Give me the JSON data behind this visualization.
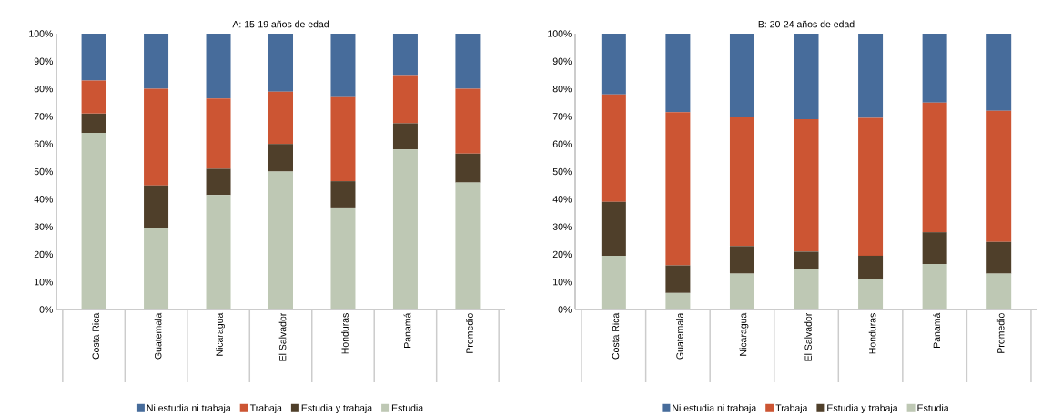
{
  "chart_data": [
    {
      "type": "bar",
      "stacked": true,
      "title": "A: 15-19 años de edad",
      "legend": "bottom",
      "categories": [
        "Costa Rica",
        "Guatemala",
        "Nicaragua",
        "El Salvador",
        "Honduras",
        "Panamá",
        "Promedio"
      ],
      "ylim": [
        0,
        100
      ],
      "yticks": [
        {
          "value": 0,
          "label": "0%"
        },
        {
          "value": 10,
          "label": "10%"
        },
        {
          "value": 20,
          "label": "20%"
        },
        {
          "value": 30,
          "label": "30%"
        },
        {
          "value": 40,
          "label": "40%"
        },
        {
          "value": 50,
          "label": "50%"
        },
        {
          "value": 60,
          "label": "60%"
        },
        {
          "value": 70,
          "label": "70%"
        },
        {
          "value": 80,
          "label": "80%"
        },
        {
          "value": 90,
          "label": "90%"
        },
        {
          "value": 100,
          "label": "100%"
        }
      ],
      "series": [
        {
          "name": "Estudia",
          "color": "#bec8b4",
          "values": [
            64,
            29.5,
            41.5,
            50,
            37,
            58,
            46
          ]
        },
        {
          "name": "Estudia y trabaja",
          "color": "#4f3f2a",
          "values": [
            7,
            15.5,
            9.5,
            10,
            9.5,
            9.5,
            10.5
          ]
        },
        {
          "name": "Trabaja",
          "color": "#cc5533",
          "values": [
            12,
            35,
            25.5,
            19,
            30.5,
            17.5,
            23.5
          ]
        },
        {
          "name": "Ni estudia ni trabaja",
          "color": "#476c9b",
          "values": [
            17,
            20,
            23.5,
            21,
            23,
            15,
            20
          ]
        }
      ]
    },
    {
      "type": "bar",
      "stacked": true,
      "title": "B: 20-24 años de edad",
      "legend": "bottom",
      "categories": [
        "Costa Rica",
        "Guatemala",
        "Nicaragua",
        "El Salvador",
        "Honduras",
        "Panamá",
        "Promedio"
      ],
      "ylim": [
        0,
        100
      ],
      "yticks": [
        {
          "value": 0,
          "label": "0%"
        },
        {
          "value": 10,
          "label": "10%"
        },
        {
          "value": 20,
          "label": "20%"
        },
        {
          "value": 30,
          "label": "30%"
        },
        {
          "value": 40,
          "label": "40%"
        },
        {
          "value": 50,
          "label": "50%"
        },
        {
          "value": 60,
          "label": "60%"
        },
        {
          "value": 70,
          "label": "70%"
        },
        {
          "value": 80,
          "label": "80%"
        },
        {
          "value": 90,
          "label": "90%"
        },
        {
          "value": 100,
          "label": "100%"
        }
      ],
      "series": [
        {
          "name": "Estudia",
          "color": "#bec8b4",
          "values": [
            19.5,
            6,
            13,
            14.5,
            11,
            16.5,
            13
          ]
        },
        {
          "name": "Estudia y trabaja",
          "color": "#4f3f2a",
          "values": [
            19.5,
            10,
            10,
            6.5,
            8.5,
            11.5,
            11.5
          ]
        },
        {
          "name": "Trabaja",
          "color": "#cc5533",
          "values": [
            39,
            55.5,
            47,
            48,
            50,
            47,
            47.5
          ]
        },
        {
          "name": "Ni estudia ni trabaja",
          "color": "#476c9b",
          "values": [
            22,
            28.5,
            30,
            31,
            30.5,
            25,
            28
          ]
        }
      ]
    }
  ]
}
